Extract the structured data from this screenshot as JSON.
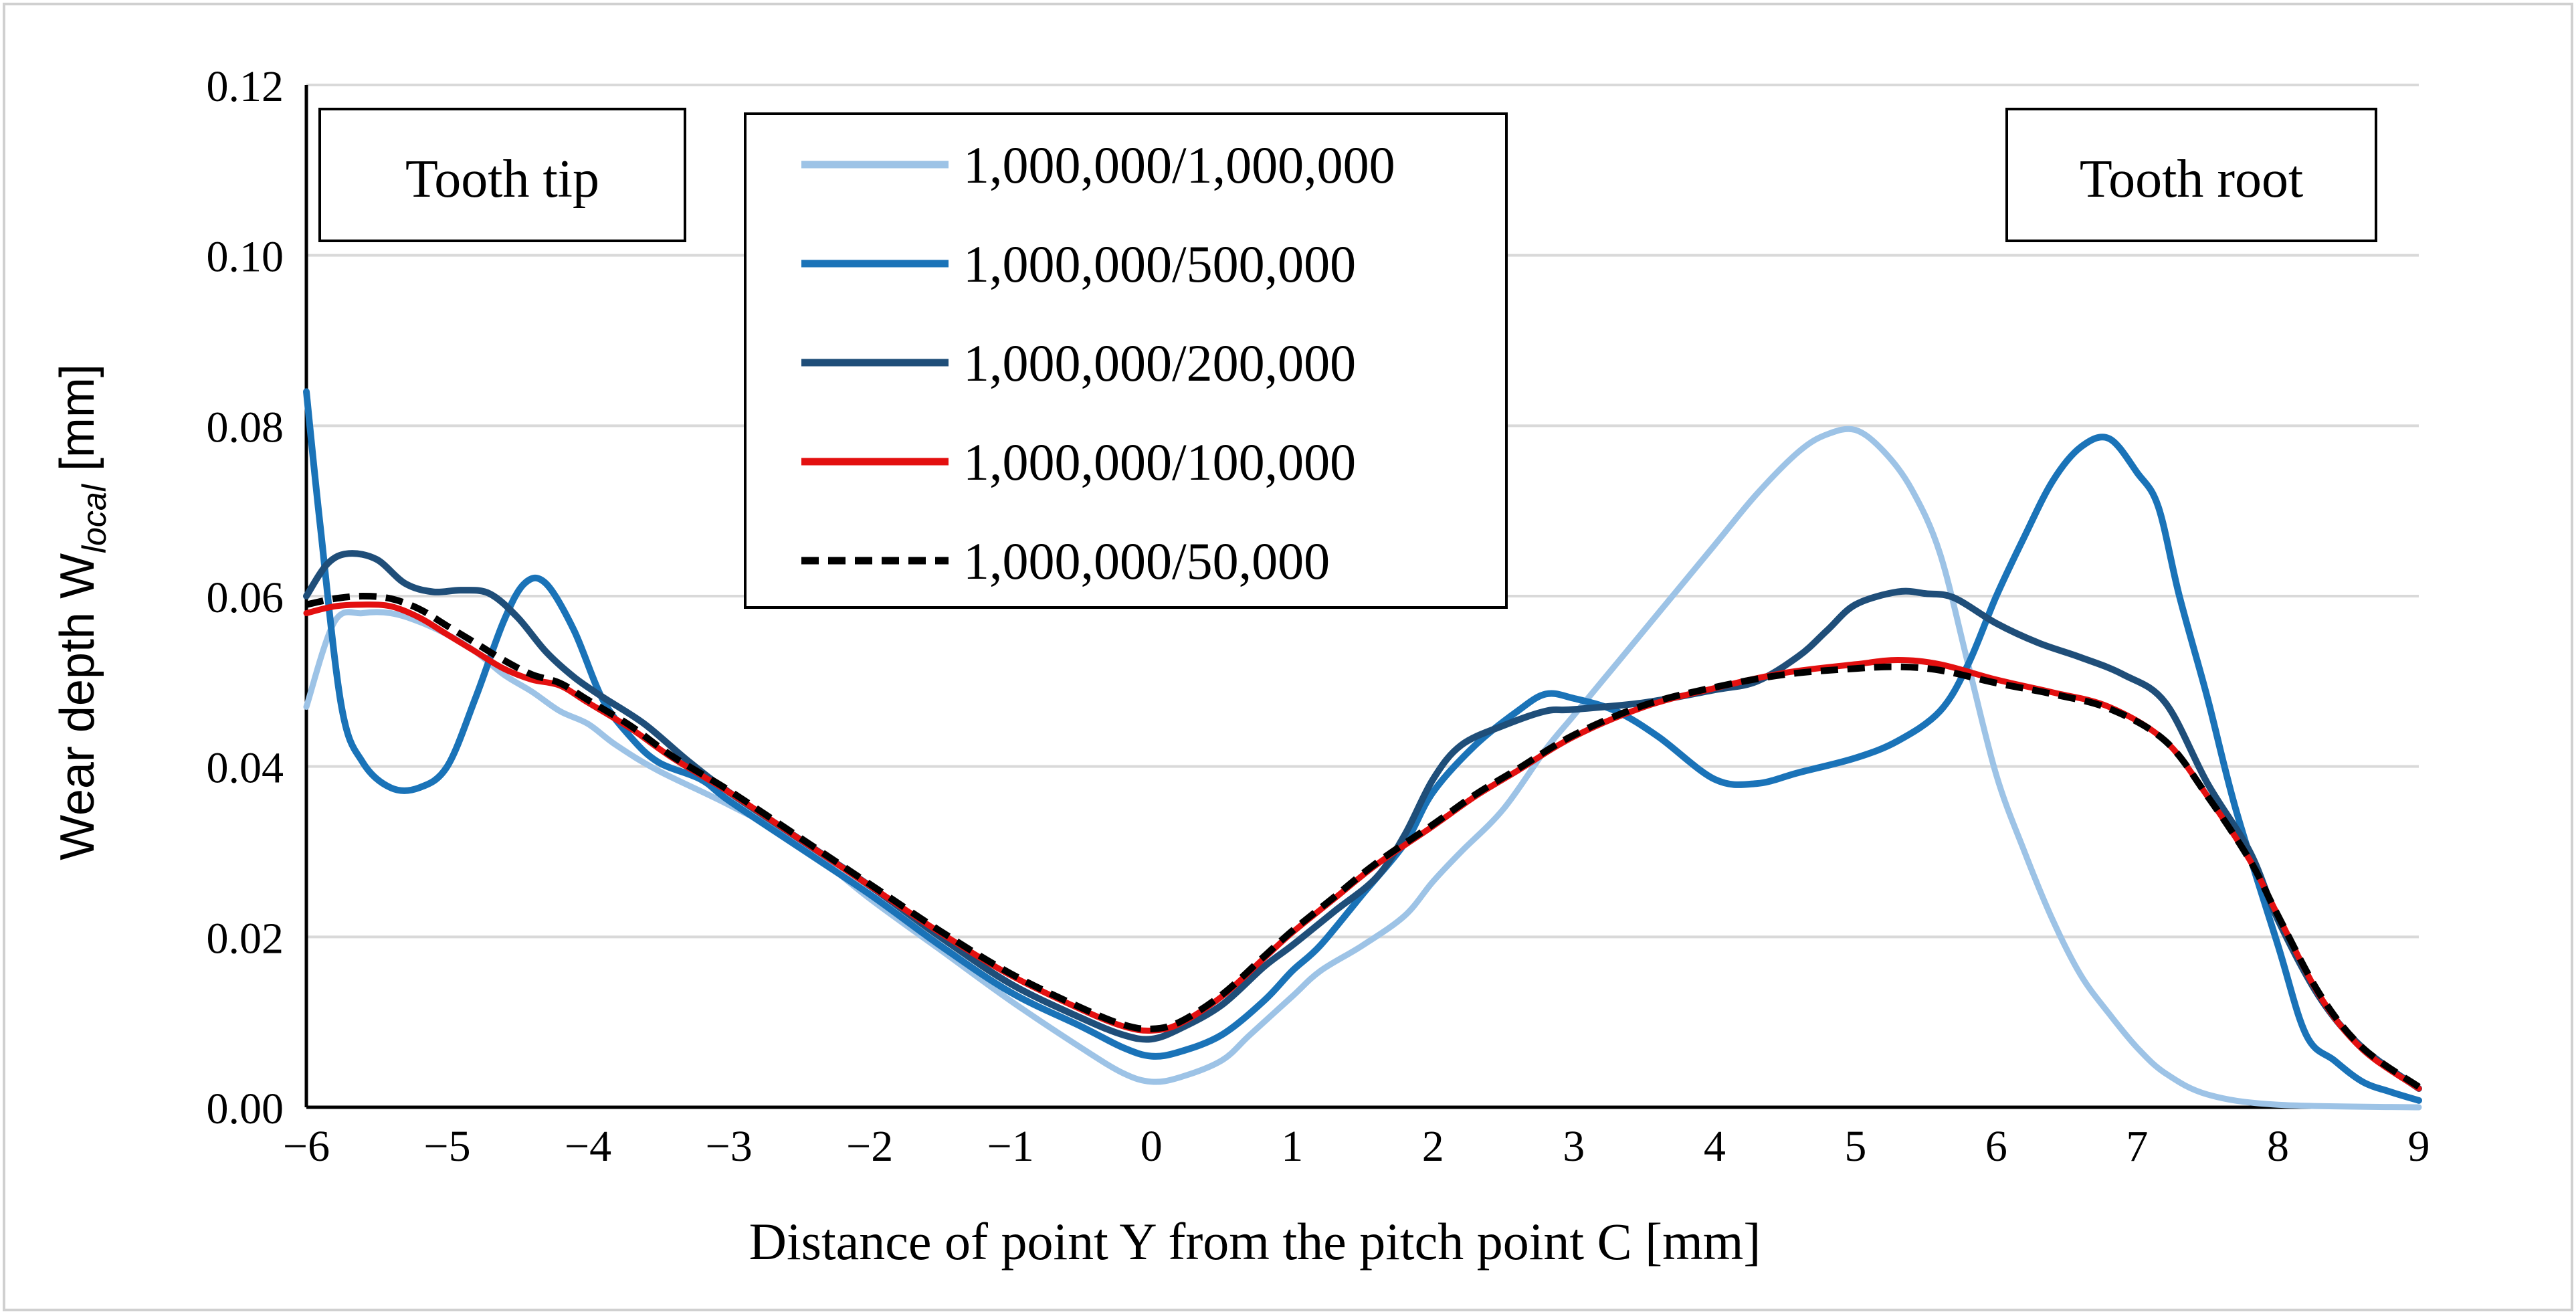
{
  "chart_data": {
    "type": "line",
    "title": "",
    "xlabel": "Distance of point Y from the pitch point C [mm]",
    "ylabel_main": "Wear depth W",
    "ylabel_sub": "local",
    "ylabel_unit": " [mm]",
    "xlim": [
      -6,
      9
    ],
    "ylim": [
      0,
      0.12
    ],
    "x_ticks": [
      -6,
      -5,
      -4,
      -3,
      -2,
      -1,
      0,
      1,
      2,
      3,
      4,
      5,
      6,
      7,
      8,
      9
    ],
    "x_tick_labels": [
      "−6",
      "−5",
      "−4",
      "−3",
      "−2",
      "−1",
      "0",
      "1",
      "2",
      "3",
      "4",
      "5",
      "6",
      "7",
      "8",
      "9"
    ],
    "y_ticks": [
      0,
      0.02,
      0.04,
      0.06,
      0.08,
      0.1,
      0.12
    ],
    "y_tick_labels": [
      "0.00",
      "0.02",
      "0.04",
      "0.06",
      "0.08",
      "0.10",
      "0.12"
    ],
    "grid": "horizontal",
    "legend_position": "top-center-left",
    "annotations": [
      {
        "text": "Tooth tip",
        "position": "top-left"
      },
      {
        "text": "Tooth root",
        "position": "top-right"
      }
    ],
    "series": [
      {
        "name": "1,000,000/1,000,000",
        "color": "#9DC3E6",
        "dash": "solid",
        "points": [
          [
            -6,
            0.047
          ],
          [
            -5.8,
            0.057
          ],
          [
            -5.6,
            0.058
          ],
          [
            -5.4,
            0.058
          ],
          [
            -5.2,
            0.057
          ],
          [
            -5,
            0.0555
          ],
          [
            -4.8,
            0.0535
          ],
          [
            -4.6,
            0.0508
          ],
          [
            -4.4,
            0.0488
          ],
          [
            -4.2,
            0.0465
          ],
          [
            -4,
            0.045
          ],
          [
            -3.8,
            0.0425
          ],
          [
            -3.5,
            0.0395
          ],
          [
            -3,
            0.0355
          ],
          [
            -2.5,
            0.031
          ],
          [
            -2,
            0.0245
          ],
          [
            -1.5,
            0.0185
          ],
          [
            -1,
            0.0125
          ],
          [
            -0.5,
            0.007
          ],
          [
            -0.2,
            0.004
          ],
          [
            0,
            0.003
          ],
          [
            0.2,
            0.0035
          ],
          [
            0.5,
            0.0055
          ],
          [
            0.7,
            0.0085
          ],
          [
            1,
            0.013
          ],
          [
            1.2,
            0.016
          ],
          [
            1.5,
            0.019
          ],
          [
            1.8,
            0.0225
          ],
          [
            2,
            0.0265
          ],
          [
            2.2,
            0.03
          ],
          [
            2.5,
            0.035
          ],
          [
            2.8,
            0.042
          ],
          [
            3,
            0.046
          ],
          [
            3.3,
            0.052
          ],
          [
            3.6,
            0.058
          ],
          [
            4,
            0.066
          ],
          [
            4.3,
            0.072
          ],
          [
            4.6,
            0.077
          ],
          [
            4.8,
            0.079
          ],
          [
            5,
            0.0795
          ],
          [
            5.2,
            0.077
          ],
          [
            5.4,
            0.0725
          ],
          [
            5.6,
            0.065
          ],
          [
            5.8,
            0.052
          ],
          [
            6,
            0.039
          ],
          [
            6.2,
            0.03
          ],
          [
            6.4,
            0.022
          ],
          [
            6.6,
            0.0155
          ],
          [
            6.8,
            0.011
          ],
          [
            7,
            0.007
          ],
          [
            7.2,
            0.004
          ],
          [
            7.5,
            0.0015
          ],
          [
            8,
            0.0003
          ],
          [
            9,
            0.0
          ]
        ]
      },
      {
        "name": "1,000,000/500,000",
        "color": "#1A73B8",
        "dash": "solid",
        "points": [
          [
            -6,
            0.084
          ],
          [
            -5.9,
            0.068
          ],
          [
            -5.75,
            0.047
          ],
          [
            -5.6,
            0.0405
          ],
          [
            -5.4,
            0.0375
          ],
          [
            -5.2,
            0.0375
          ],
          [
            -5,
            0.04
          ],
          [
            -4.8,
            0.048
          ],
          [
            -4.6,
            0.057
          ],
          [
            -4.45,
            0.0615
          ],
          [
            -4.3,
            0.0615
          ],
          [
            -4.1,
            0.056
          ],
          [
            -3.9,
            0.048
          ],
          [
            -3.7,
            0.0435
          ],
          [
            -3.5,
            0.0405
          ],
          [
            -3.2,
            0.0385
          ],
          [
            -3,
            0.036
          ],
          [
            -2.5,
            0.0305
          ],
          [
            -2,
            0.025
          ],
          [
            -1.5,
            0.019
          ],
          [
            -1,
            0.0135
          ],
          [
            -0.5,
            0.0095
          ],
          [
            -0.2,
            0.007
          ],
          [
            0,
            0.006
          ],
          [
            0.2,
            0.0065
          ],
          [
            0.5,
            0.0085
          ],
          [
            0.8,
            0.0125
          ],
          [
            1,
            0.016
          ],
          [
            1.2,
            0.019
          ],
          [
            1.5,
            0.025
          ],
          [
            1.8,
            0.031
          ],
          [
            2,
            0.037
          ],
          [
            2.3,
            0.0425
          ],
          [
            2.6,
            0.0465
          ],
          [
            2.8,
            0.0485
          ],
          [
            3,
            0.048
          ],
          [
            3.3,
            0.0465
          ],
          [
            3.6,
            0.0435
          ],
          [
            4,
            0.0385
          ],
          [
            4.3,
            0.038
          ],
          [
            4.6,
            0.0393
          ],
          [
            5,
            0.041
          ],
          [
            5.3,
            0.043
          ],
          [
            5.6,
            0.0465
          ],
          [
            5.8,
            0.052
          ],
          [
            6,
            0.06
          ],
          [
            6.2,
            0.067
          ],
          [
            6.4,
            0.0735
          ],
          [
            6.6,
            0.0775
          ],
          [
            6.8,
            0.0785
          ],
          [
            7,
            0.0745
          ],
          [
            7.15,
            0.0705
          ],
          [
            7.3,
            0.06
          ],
          [
            7.5,
            0.048
          ],
          [
            7.7,
            0.035
          ],
          [
            8,
            0.019
          ],
          [
            8.2,
            0.0085
          ],
          [
            8.4,
            0.0055
          ],
          [
            8.6,
            0.003
          ],
          [
            8.8,
            0.0018
          ],
          [
            9,
            0.0008
          ]
        ]
      },
      {
        "name": "1,000,000/200,000",
        "color": "#1F4E79",
        "dash": "solid",
        "points": [
          [
            -6,
            0.06
          ],
          [
            -5.85,
            0.0638
          ],
          [
            -5.7,
            0.065
          ],
          [
            -5.5,
            0.0643
          ],
          [
            -5.3,
            0.0615
          ],
          [
            -5.1,
            0.0605
          ],
          [
            -4.9,
            0.0607
          ],
          [
            -4.7,
            0.0603
          ],
          [
            -4.5,
            0.0575
          ],
          [
            -4.3,
            0.0535
          ],
          [
            -4.1,
            0.0505
          ],
          [
            -3.9,
            0.0482
          ],
          [
            -3.6,
            0.045
          ],
          [
            -3.3,
            0.0408
          ],
          [
            -3,
            0.037
          ],
          [
            -2.5,
            0.0315
          ],
          [
            -2,
            0.026
          ],
          [
            -1.5,
            0.02
          ],
          [
            -1,
            0.0145
          ],
          [
            -0.5,
            0.0105
          ],
          [
            -0.2,
            0.0085
          ],
          [
            0,
            0.008
          ],
          [
            0.2,
            0.0092
          ],
          [
            0.5,
            0.012
          ],
          [
            0.8,
            0.0165
          ],
          [
            1,
            0.019
          ],
          [
            1.3,
            0.023
          ],
          [
            1.6,
            0.027
          ],
          [
            1.8,
            0.032
          ],
          [
            2,
            0.0385
          ],
          [
            2.2,
            0.0425
          ],
          [
            2.5,
            0.0448
          ],
          [
            2.8,
            0.0465
          ],
          [
            3,
            0.0467
          ],
          [
            3.5,
            0.0475
          ],
          [
            4,
            0.049
          ],
          [
            4.3,
            0.05
          ],
          [
            4.6,
            0.053
          ],
          [
            4.8,
            0.056
          ],
          [
            5,
            0.059
          ],
          [
            5.3,
            0.0605
          ],
          [
            5.5,
            0.0603
          ],
          [
            5.7,
            0.0598
          ],
          [
            6,
            0.0568
          ],
          [
            6.3,
            0.0545
          ],
          [
            6.6,
            0.0528
          ],
          [
            6.9,
            0.0508
          ],
          [
            7.2,
            0.0475
          ],
          [
            7.5,
            0.038
          ],
          [
            7.8,
            0.03
          ],
          [
            8,
            0.022
          ],
          [
            8.3,
            0.0128
          ],
          [
            8.6,
            0.007
          ],
          [
            9,
            0.0022
          ]
        ]
      },
      {
        "name": "1,000,000/100,000",
        "color": "#E31010",
        "dash": "solid",
        "points": [
          [
            -6,
            0.058
          ],
          [
            -5.8,
            0.0588
          ],
          [
            -5.6,
            0.059
          ],
          [
            -5.4,
            0.0588
          ],
          [
            -5.2,
            0.0575
          ],
          [
            -5,
            0.0555
          ],
          [
            -4.8,
            0.0535
          ],
          [
            -4.6,
            0.0515
          ],
          [
            -4.4,
            0.0502
          ],
          [
            -4.2,
            0.0495
          ],
          [
            -4,
            0.0475
          ],
          [
            -3.7,
            0.0445
          ],
          [
            -3.4,
            0.041
          ],
          [
            -3,
            0.037
          ],
          [
            -2.5,
            0.0315
          ],
          [
            -2,
            0.026
          ],
          [
            -1.5,
            0.0205
          ],
          [
            -1,
            0.0155
          ],
          [
            -0.5,
            0.0115
          ],
          [
            -0.2,
            0.0095
          ],
          [
            0,
            0.009
          ],
          [
            0.2,
            0.0098
          ],
          [
            0.5,
            0.013
          ],
          [
            0.8,
            0.0175
          ],
          [
            1,
            0.0205
          ],
          [
            1.3,
            0.0245
          ],
          [
            1.6,
            0.0285
          ],
          [
            2,
            0.033
          ],
          [
            2.3,
            0.0365
          ],
          [
            2.6,
            0.0395
          ],
          [
            3,
            0.0435
          ],
          [
            3.5,
            0.047
          ],
          [
            4,
            0.0492
          ],
          [
            4.5,
            0.051
          ],
          [
            5,
            0.052
          ],
          [
            5.3,
            0.0525
          ],
          [
            5.6,
            0.052
          ],
          [
            6,
            0.0502
          ],
          [
            6.4,
            0.0487
          ],
          [
            6.8,
            0.047
          ],
          [
            7.2,
            0.043
          ],
          [
            7.5,
            0.0365
          ],
          [
            7.8,
            0.029
          ],
          [
            8,
            0.0225
          ],
          [
            8.3,
            0.013
          ],
          [
            8.6,
            0.0068
          ],
          [
            9,
            0.0022
          ]
        ]
      },
      {
        "name": "1,000,000/50,000",
        "color": "#000000",
        "dash": "dashed",
        "points": [
          [
            -6,
            0.059
          ],
          [
            -5.8,
            0.0597
          ],
          [
            -5.6,
            0.06
          ],
          [
            -5.4,
            0.0597
          ],
          [
            -5.2,
            0.0585
          ],
          [
            -5,
            0.0565
          ],
          [
            -4.8,
            0.0545
          ],
          [
            -4.6,
            0.0525
          ],
          [
            -4.4,
            0.0508
          ],
          [
            -4.2,
            0.0498
          ],
          [
            -4,
            0.0478
          ],
          [
            -3.7,
            0.0448
          ],
          [
            -3.4,
            0.0412
          ],
          [
            -3,
            0.0372
          ],
          [
            -2.5,
            0.0317
          ],
          [
            -2,
            0.0262
          ],
          [
            -1.5,
            0.0207
          ],
          [
            -1,
            0.0157
          ],
          [
            -0.5,
            0.0117
          ],
          [
            -0.2,
            0.0097
          ],
          [
            0,
            0.0092
          ],
          [
            0.2,
            0.01
          ],
          [
            0.5,
            0.0132
          ],
          [
            0.8,
            0.0177
          ],
          [
            1,
            0.0207
          ],
          [
            1.3,
            0.0247
          ],
          [
            1.6,
            0.0287
          ],
          [
            2,
            0.0332
          ],
          [
            2.3,
            0.0367
          ],
          [
            2.6,
            0.0397
          ],
          [
            3,
            0.0437
          ],
          [
            3.5,
            0.0472
          ],
          [
            4,
            0.0493
          ],
          [
            4.5,
            0.0508
          ],
          [
            5,
            0.0515
          ],
          [
            5.3,
            0.0517
          ],
          [
            5.6,
            0.0513
          ],
          [
            6,
            0.0498
          ],
          [
            6.4,
            0.0485
          ],
          [
            6.8,
            0.0468
          ],
          [
            7.2,
            0.043
          ],
          [
            7.5,
            0.0365
          ],
          [
            7.8,
            0.029
          ],
          [
            8,
            0.0225
          ],
          [
            8.3,
            0.0132
          ],
          [
            8.6,
            0.007
          ],
          [
            9,
            0.0024
          ]
        ]
      }
    ]
  }
}
